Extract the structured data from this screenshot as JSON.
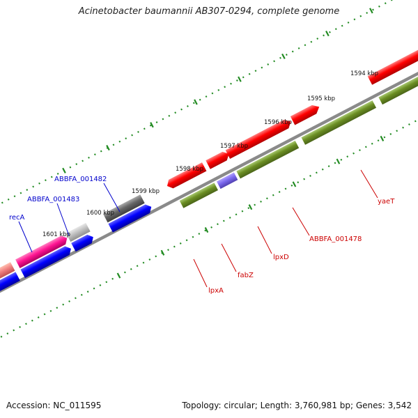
{
  "title": "Acinetobacter baumannii AB307-0294, complete genome",
  "footer": {
    "accession": "Accession: NC_011595",
    "summary": "Topology: circular; Length: 3,760,981 bp; Genes: 3,542"
  },
  "ticks": [
    {
      "label": "1594 kbp"
    },
    {
      "label": "1595 kbp"
    },
    {
      "label": "1596 kbp"
    },
    {
      "label": "1597 kbp"
    },
    {
      "label": "1598 kbp"
    },
    {
      "label": "1599 kbp"
    },
    {
      "label": "1600 kbp"
    },
    {
      "label": "1601 kbp"
    }
  ],
  "gene_labels": {
    "recA": "recA",
    "ABBFA_001483": "ABBFA_001483",
    "ABBFA_001482": "ABBFA_001482",
    "lpxA": "lpxA",
    "fabZ": "fabZ",
    "lpxD": "lpxD",
    "ABBFA_001478": "ABBFA_001478",
    "yaeT": "yaeT"
  },
  "colors": {
    "forward_gene": "#ff0000",
    "reverse_gene": "#0000ff",
    "cog_olive": "#6b8e23",
    "reca_pink": "#ff1493",
    "grey_gene": "#666666",
    "backbone": "#808080",
    "tick_green": "#228b22"
  }
}
